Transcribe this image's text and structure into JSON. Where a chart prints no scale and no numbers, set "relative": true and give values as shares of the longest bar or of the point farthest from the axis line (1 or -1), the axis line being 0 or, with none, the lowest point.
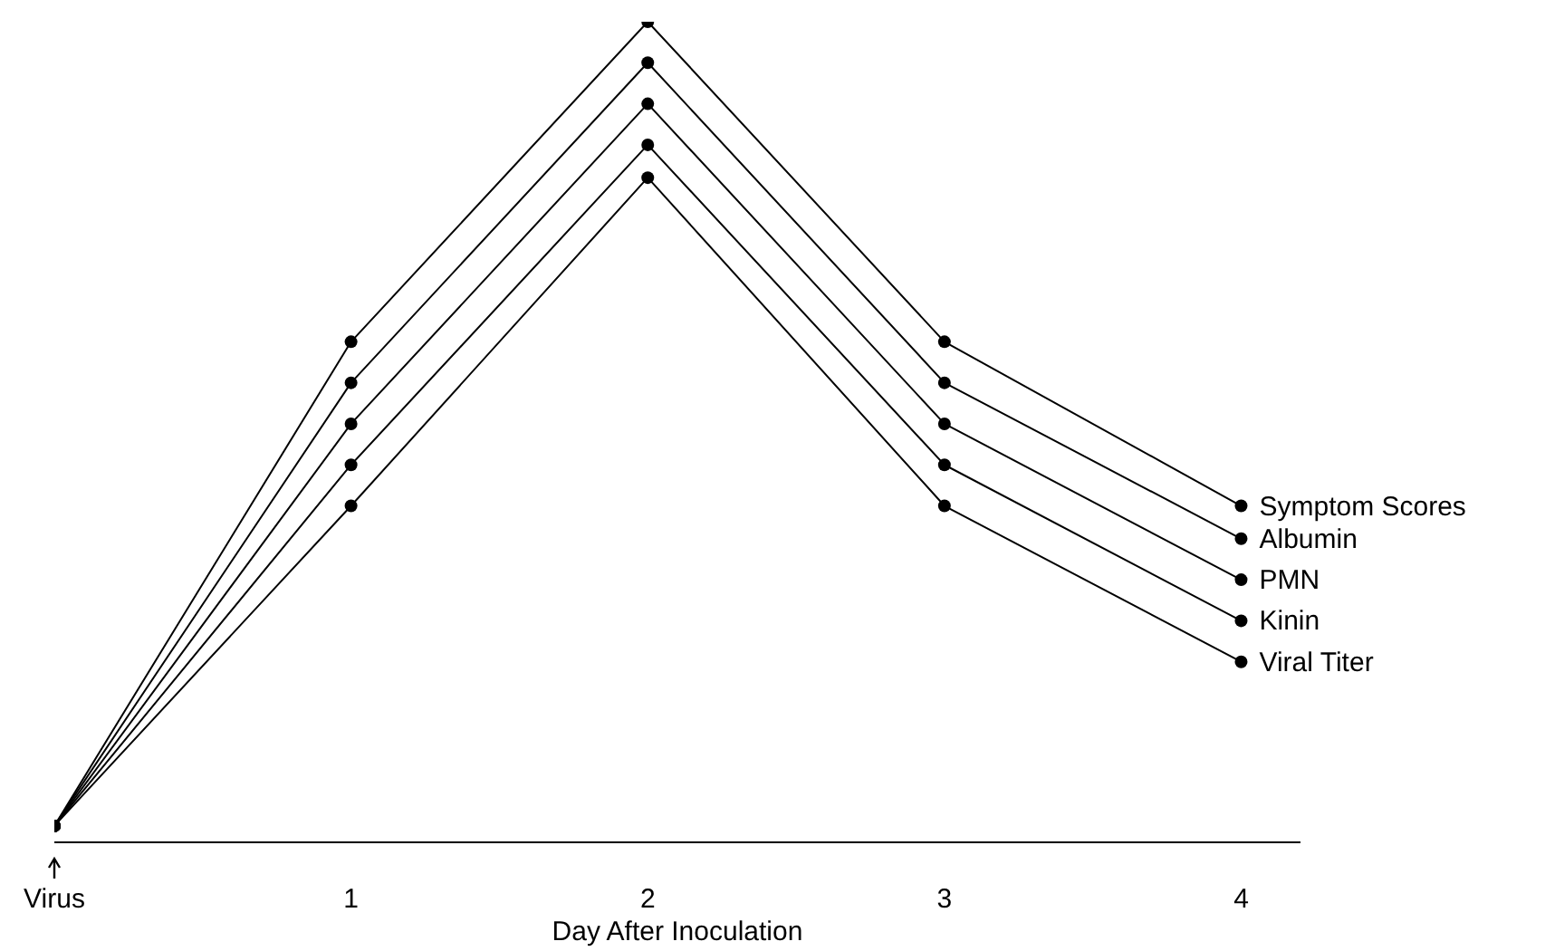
{
  "chart_data": {
    "type": "line",
    "relative": true,
    "xlabel": "Day After Inoculation",
    "x": [
      0,
      1,
      2,
      3,
      4
    ],
    "xlim": [
      0,
      4.2
    ],
    "xticks": [
      {
        "value": 0,
        "label": "Virus"
      },
      1,
      2,
      3,
      4
    ],
    "marker": "circle",
    "grid": false,
    "legend": false,
    "series": [
      {
        "name": "Symptom Scores",
        "color": "#000000",
        "values": [
          0.02,
          0.61,
          1,
          0.61,
          0.41
        ]
      },
      {
        "name": "Albumin",
        "color": "#000000",
        "values": [
          0.02,
          0.56,
          0.95,
          0.56,
          0.37
        ]
      },
      {
        "name": "PMN",
        "color": "#000000",
        "values": [
          0.02,
          0.51,
          0.9,
          0.51,
          0.32
        ]
      },
      {
        "name": "Kinin",
        "color": "#000000",
        "values": [
          0.02,
          0.46,
          0.85,
          0.46,
          0.27
        ]
      },
      {
        "name": "Viral Titer",
        "color": "#000000",
        "values": [
          0.02,
          0.41,
          0.81,
          0.41,
          0.22
        ]
      }
    ]
  }
}
